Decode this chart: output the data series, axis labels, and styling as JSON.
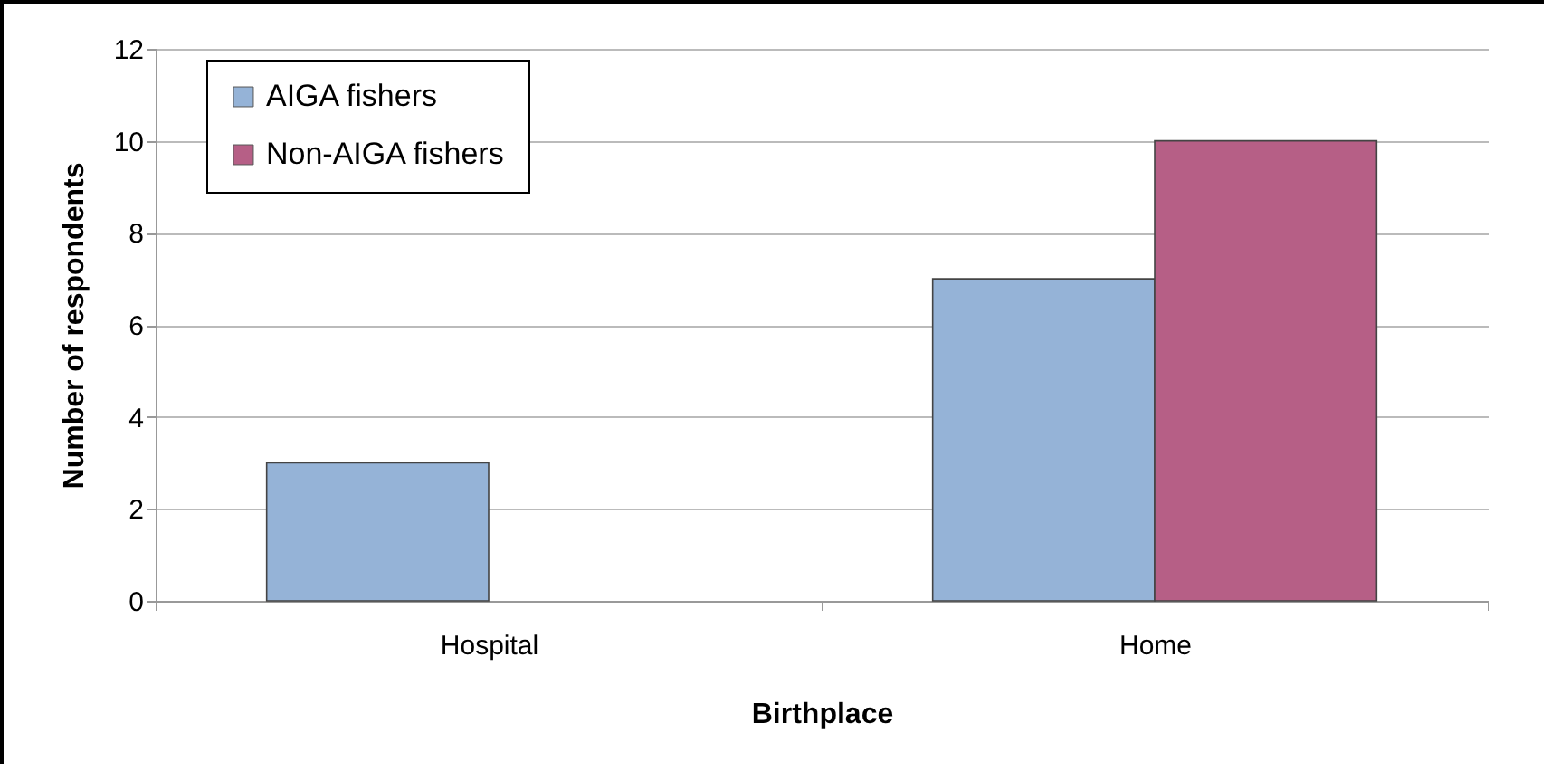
{
  "chart_data": {
    "type": "bar",
    "xlabel": "Birthplace",
    "ylabel": "Number of respondents",
    "categories": [
      "Hospital",
      "Home"
    ],
    "series": [
      {
        "name": "AIGA fishers",
        "color": "#95b3d7",
        "values": [
          3,
          7
        ]
      },
      {
        "name": "Non-AIGA fishers",
        "color": "#b65f86",
        "values": [
          null,
          10
        ]
      }
    ],
    "ylim": [
      0,
      12
    ],
    "yticks": [
      0,
      2,
      4,
      6,
      8,
      10,
      12
    ],
    "grid": "y",
    "legend": "top left"
  }
}
